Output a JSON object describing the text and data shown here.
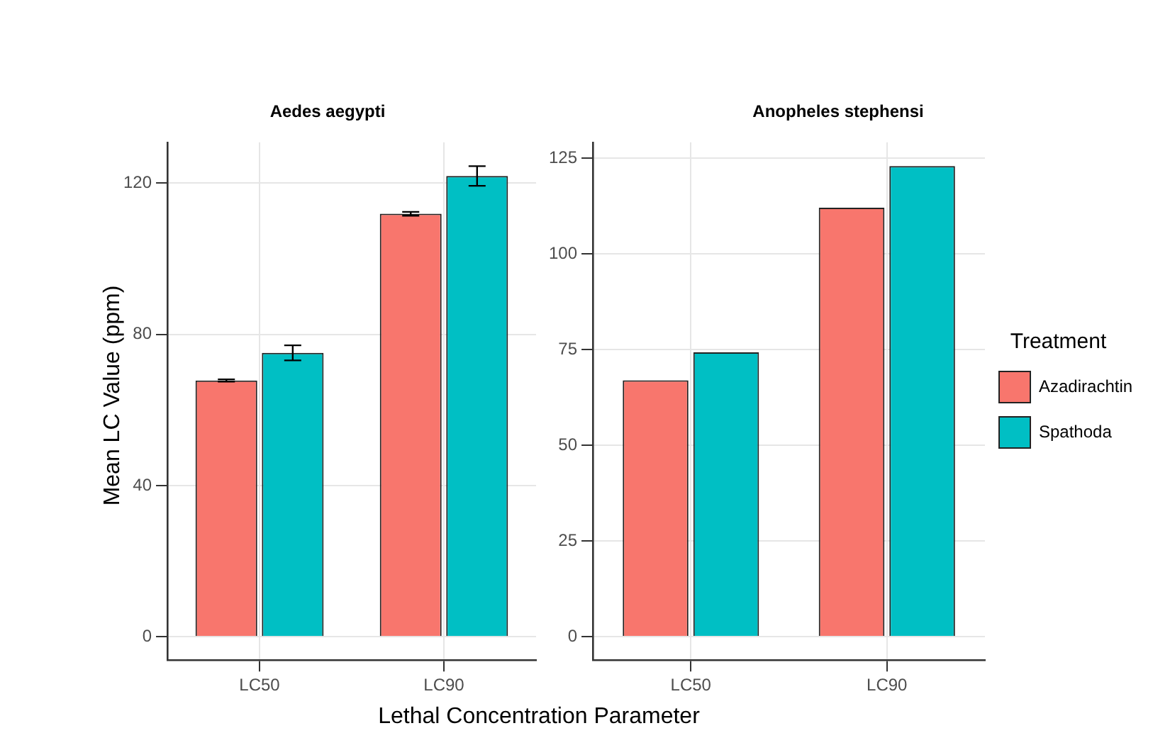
{
  "chart_data": [
    {
      "type": "bar",
      "title": "Aedes aegypti",
      "xlabel": "Lethal Concentration Parameter",
      "ylabel": "Mean LC Value (ppm)",
      "categories": [
        "LC50",
        "LC90"
      ],
      "series": [
        {
          "color": "#f8766d",
          "values": [
            67.8,
            111.9
          ],
          "errors": [
            0.3,
            0.5
          ]
        },
        {
          "color": "#00bfc4",
          "values": [
            75.1,
            121.9
          ],
          "errors": [
            2,
            2.6
          ]
        }
      ],
      "ylim": [
        -6.2,
        130.8
      ],
      "yticks": [
        0,
        40,
        80,
        120
      ],
      "grid": true,
      "legend": false
    },
    {
      "type": "bar",
      "title": "Anopheles stephensi",
      "legend_title": "Treatment",
      "categories": [
        "LC50",
        "LC90"
      ],
      "series": [
        {
          "name": "Azadirachtin",
          "color": "#f8766d",
          "values": [
            67,
            112.1
          ]
        },
        {
          "name": "Spathoda",
          "color": "#00bfc4",
          "values": [
            74.3,
            123
          ]
        }
      ],
      "ylim": [
        -6.15,
        129.2
      ],
      "yticks": [
        0,
        25,
        50,
        75,
        100,
        125
      ],
      "grid": true,
      "legend": "right"
    }
  ]
}
